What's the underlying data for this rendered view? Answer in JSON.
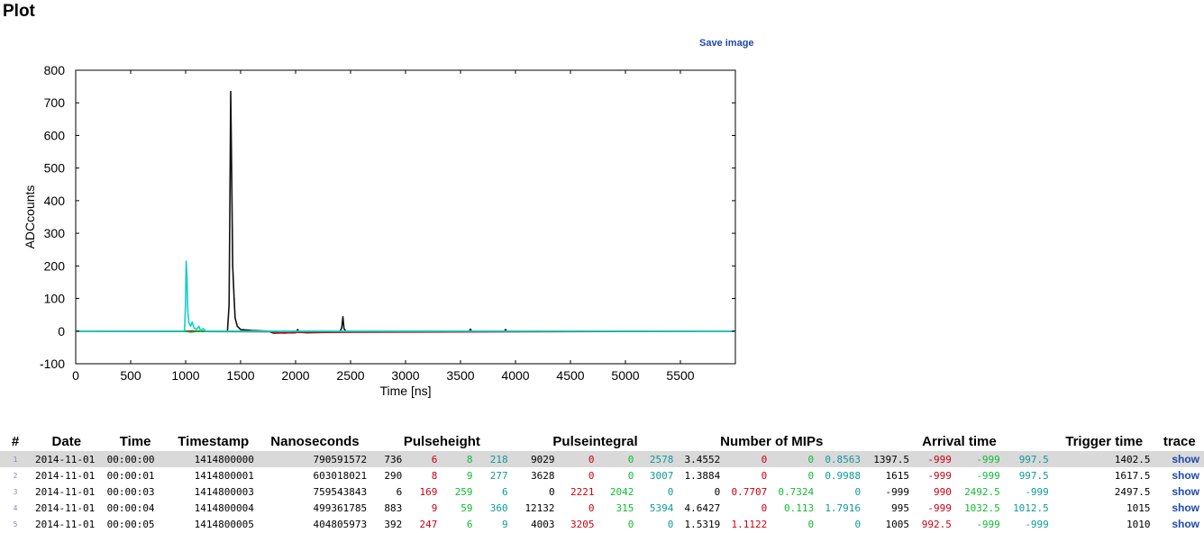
{
  "page": {
    "title": "Plot",
    "save_label": "Save image"
  },
  "chart_data": {
    "type": "line",
    "xlabel": "Time [ns]",
    "ylabel": "ADCcounts",
    "xlim": [
      0,
      6000
    ],
    "ylim": [
      -100,
      800
    ],
    "xticks": [
      0,
      500,
      1000,
      1500,
      2000,
      2500,
      3000,
      3500,
      4000,
      4500,
      5000,
      5500
    ],
    "yticks": [
      -100,
      0,
      100,
      200,
      300,
      400,
      500,
      600,
      700,
      800
    ],
    "grid": false,
    "series": [
      {
        "color": "#111111",
        "points": [
          [
            0,
            0
          ],
          [
            1380,
            0
          ],
          [
            1395,
            80
          ],
          [
            1405,
            500
          ],
          [
            1410,
            735
          ],
          [
            1418,
            500
          ],
          [
            1428,
            200
          ],
          [
            1440,
            105
          ],
          [
            1450,
            40
          ],
          [
            1470,
            15
          ],
          [
            1500,
            5
          ],
          [
            1600,
            2
          ],
          [
            1750,
            0
          ],
          [
            1800,
            -6
          ],
          [
            2000,
            -5
          ],
          [
            2020,
            5
          ],
          [
            2030,
            -3
          ],
          [
            2100,
            -5
          ],
          [
            2400,
            -3
          ],
          [
            2420,
            10
          ],
          [
            2430,
            44
          ],
          [
            2440,
            8
          ],
          [
            2460,
            -2
          ],
          [
            3000,
            0
          ],
          [
            3580,
            0
          ],
          [
            3590,
            6
          ],
          [
            3600,
            0
          ],
          [
            3900,
            0
          ],
          [
            3910,
            5
          ],
          [
            3920,
            0
          ],
          [
            6000,
            0
          ]
        ]
      },
      {
        "color": "#cc0011",
        "points": [
          [
            0,
            0
          ],
          [
            1790,
            -2
          ],
          [
            1800,
            -4
          ],
          [
            1900,
            -6
          ],
          [
            2000,
            -4
          ],
          [
            6000,
            0
          ]
        ]
      },
      {
        "color": "#11bb33",
        "points": [
          [
            0,
            0
          ],
          [
            1000,
            -1
          ],
          [
            1050,
            -3
          ],
          [
            1100,
            -1
          ],
          [
            6000,
            0
          ]
        ]
      },
      {
        "color": "#11cccc",
        "points": [
          [
            0,
            0
          ],
          [
            990,
            0
          ],
          [
            998,
            80
          ],
          [
            1005,
            215
          ],
          [
            1012,
            160
          ],
          [
            1020,
            60
          ],
          [
            1030,
            25
          ],
          [
            1045,
            15
          ],
          [
            1060,
            28
          ],
          [
            1075,
            10
          ],
          [
            1100,
            5
          ],
          [
            1120,
            15
          ],
          [
            1135,
            2
          ],
          [
            1160,
            8
          ],
          [
            1180,
            0
          ],
          [
            6000,
            0
          ]
        ]
      }
    ]
  },
  "table": {
    "headers": [
      "#",
      "Date",
      "Time",
      "Timestamp",
      "Nanoseconds",
      "Pulseheight",
      "Pulseintegral",
      "Number of MIPs",
      "Arrival time",
      "Trigger time",
      "trace"
    ],
    "show_label": "show",
    "rows": [
      {
        "num": "1",
        "date": "2014-11-01",
        "time": "00:00:00",
        "timestamp": "1414800000",
        "ns": "790591572",
        "ph": [
          "736",
          "6",
          "8",
          "218"
        ],
        "pi": [
          "9029",
          "0",
          "0",
          "2578"
        ],
        "mips": [
          "3.4552",
          "0",
          "0",
          "0.8563"
        ],
        "arrival": [
          "1397.5",
          "-999",
          "-999",
          "997.5"
        ],
        "trigger": "1402.5"
      },
      {
        "num": "2",
        "date": "2014-11-01",
        "time": "00:00:01",
        "timestamp": "1414800001",
        "ns": "603018021",
        "ph": [
          "290",
          "8",
          "9",
          "277"
        ],
        "pi": [
          "3628",
          "0",
          "0",
          "3007"
        ],
        "mips": [
          "1.3884",
          "0",
          "0",
          "0.9988"
        ],
        "arrival": [
          "1615",
          "-999",
          "-999",
          "997.5"
        ],
        "trigger": "1617.5"
      },
      {
        "num": "3",
        "date": "2014-11-01",
        "time": "00:00:03",
        "timestamp": "1414800003",
        "ns": "759543843",
        "ph": [
          "6",
          "169",
          "259",
          "6"
        ],
        "pi": [
          "0",
          "2221",
          "2042",
          "0"
        ],
        "mips": [
          "0",
          "0.7707",
          "0.7324",
          "0"
        ],
        "arrival": [
          "-999",
          "990",
          "2492.5",
          "-999"
        ],
        "trigger": "2497.5"
      },
      {
        "num": "4",
        "date": "2014-11-01",
        "time": "00:00:04",
        "timestamp": "1414800004",
        "ns": "499361785",
        "ph": [
          "883",
          "9",
          "59",
          "360"
        ],
        "pi": [
          "12132",
          "0",
          "315",
          "5394"
        ],
        "mips": [
          "4.6427",
          "0",
          "0.113",
          "1.7916"
        ],
        "arrival": [
          "995",
          "-999",
          "1032.5",
          "1012.5"
        ],
        "trigger": "1015"
      },
      {
        "num": "5",
        "date": "2014-11-01",
        "time": "00:00:05",
        "timestamp": "1414800005",
        "ns": "404805973",
        "ph": [
          "392",
          "247",
          "6",
          "9"
        ],
        "pi": [
          "4003",
          "3205",
          "0",
          "0"
        ],
        "mips": [
          "1.5319",
          "1.1122",
          "0",
          "0"
        ],
        "arrival": [
          "1005",
          "992.5",
          "-999",
          "-999"
        ],
        "trigger": "1010"
      }
    ]
  }
}
